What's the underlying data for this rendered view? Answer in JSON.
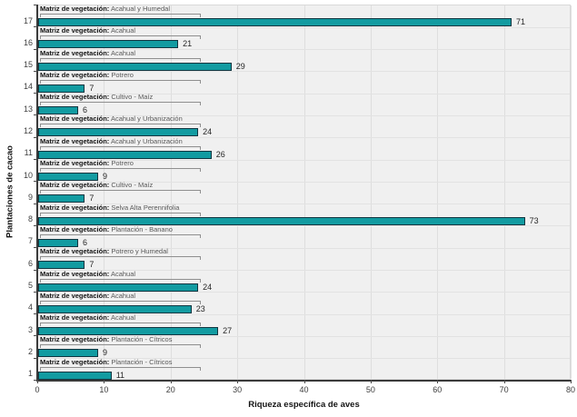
{
  "chart_data": {
    "type": "bar",
    "orientation": "horizontal",
    "xlabel": "Riqueza específica de aves",
    "ylabel": "Plantaciones de cacao",
    "xlim": [
      0,
      80
    ],
    "xticks": [
      0,
      10,
      20,
      30,
      40,
      50,
      60,
      70,
      80
    ],
    "grid": true,
    "legend": "none",
    "bar_annotation_prefix": "Matriz de vegetación:",
    "rows": [
      {
        "plantation": "17",
        "richness": 71,
        "matrix": "Acahual y Humedal"
      },
      {
        "plantation": "16",
        "richness": 21,
        "matrix": "Acahual"
      },
      {
        "plantation": "15",
        "richness": 29,
        "matrix": "Acahual"
      },
      {
        "plantation": "14",
        "richness": 7,
        "matrix": "Potrero"
      },
      {
        "plantation": "13",
        "richness": 6,
        "matrix": "Cultivo - Maíz"
      },
      {
        "plantation": "12",
        "richness": 24,
        "matrix": "Acahual y Urbanización"
      },
      {
        "plantation": "11",
        "richness": 26,
        "matrix": "Acahual y Urbanización"
      },
      {
        "plantation": "10",
        "richness": 9,
        "matrix": "Potrero"
      },
      {
        "plantation": "9",
        "richness": 7,
        "matrix": "Cultivo - Maíz"
      },
      {
        "plantation": "8",
        "richness": 73,
        "matrix": "Selva Alta Perennifolia"
      },
      {
        "plantation": "7",
        "richness": 6,
        "matrix": "Plantación - Banano"
      },
      {
        "plantation": "6",
        "richness": 7,
        "matrix": "Potrero y Humedal"
      },
      {
        "plantation": "5",
        "richness": 24,
        "matrix": "Acahual"
      },
      {
        "plantation": "4",
        "richness": 23,
        "matrix": "Acahual"
      },
      {
        "plantation": "3",
        "richness": 27,
        "matrix": "Acahual"
      },
      {
        "plantation": "2",
        "richness": 9,
        "matrix": "Plantación - Cítricos"
      },
      {
        "plantation": "1",
        "richness": 11,
        "matrix": "Plantación - Cítricos"
      }
    ],
    "colors": {
      "bar_fill": "#129ba1",
      "bar_border": "#103540",
      "plot_background": "#f0f0f0",
      "gridline": "#dedede",
      "axis": "#3a3a3a",
      "bracket": "#8f8f8f",
      "annotation_prefix_text": "#141414",
      "annotation_value_text": "#595959"
    }
  }
}
